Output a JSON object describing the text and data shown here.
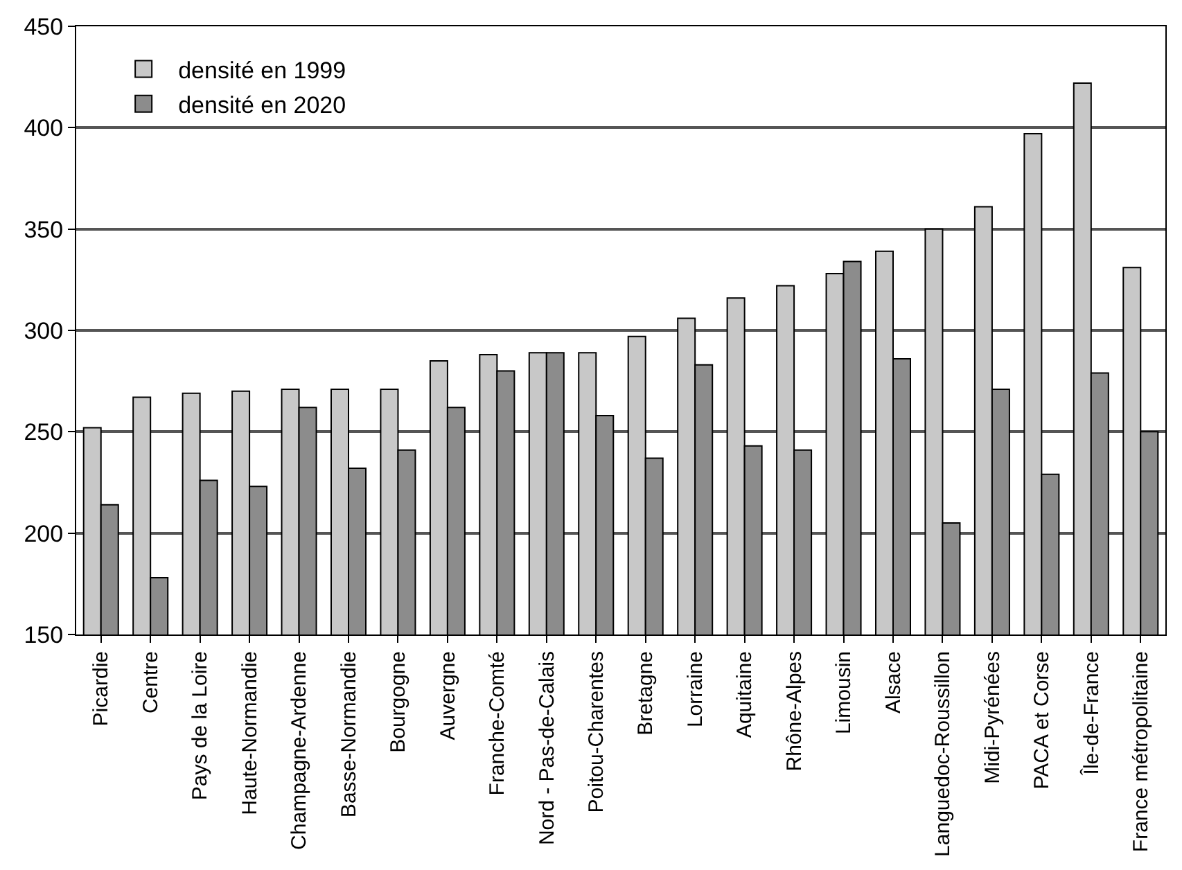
{
  "chart_data": {
    "type": "bar",
    "categories": [
      "Picardie",
      "Centre",
      "Pays de la Loire",
      "Haute-Normandie",
      "Champagne-Ardenne",
      "Basse-Normandie",
      "Bourgogne",
      "Auvergne",
      "Franche-Comté",
      "Nord - Pas-de-Calais",
      "Poitou-Charentes",
      "Bretagne",
      "Lorraine",
      "Aquitaine",
      "Rhône-Alpes",
      "Limousin",
      "Alsace",
      "Languedoc-Roussillon",
      "Midi-Pyrénées",
      "PACA et Corse",
      "Île-de-France",
      "France métropolitaine"
    ],
    "series": [
      {
        "name": "densité en 1999",
        "color": "#c8c8c8",
        "values": [
          252,
          267,
          269,
          270,
          271,
          271,
          271,
          285,
          288,
          289,
          289,
          297,
          306,
          316,
          322,
          328,
          339,
          350,
          361,
          397,
          422,
          331
        ]
      },
      {
        "name": "densité en 2020",
        "color": "#8c8c8c",
        "values": [
          214,
          178,
          226,
          223,
          262,
          232,
          241,
          262,
          280,
          289,
          258,
          237,
          283,
          243,
          241,
          334,
          286,
          205,
          271,
          229,
          279,
          250
        ]
      }
    ],
    "ylim": [
      150,
      450
    ],
    "yticks": [
      150,
      200,
      250,
      300,
      350,
      400,
      450
    ],
    "grid": "y",
    "legend": "top left"
  }
}
